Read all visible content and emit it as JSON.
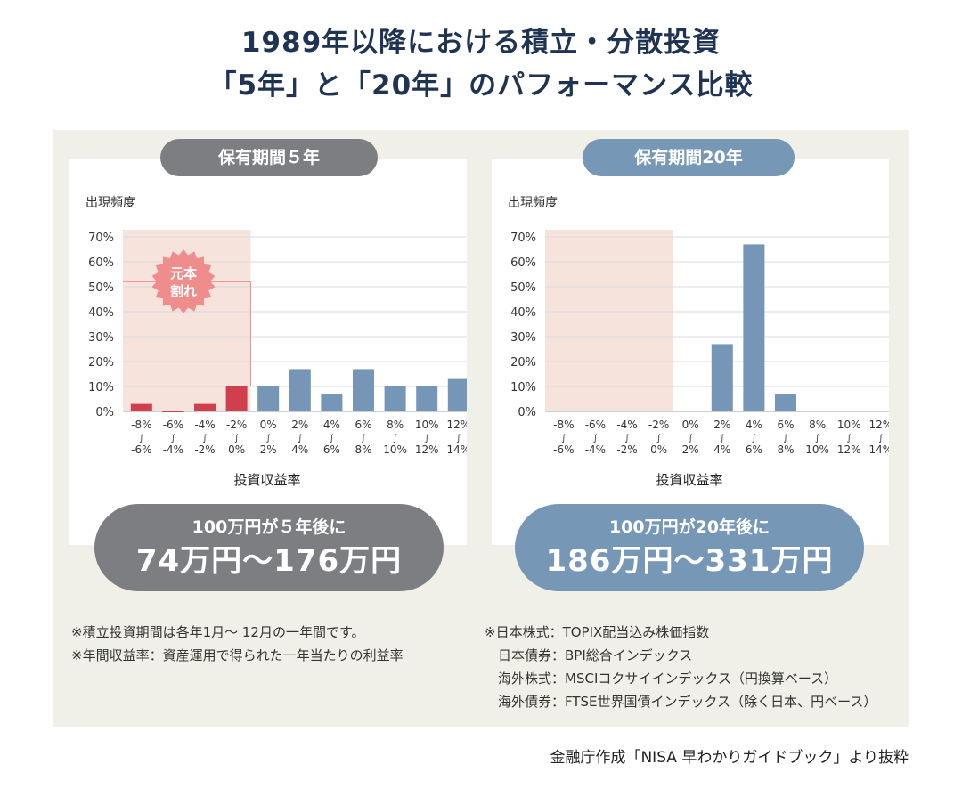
{
  "title_line1": "1989年以降における積立・分散投資",
  "title_line2": "「5年」と「20年」のパフォーマンス比較",
  "colors": {
    "loss_bar": "#cf3f4c",
    "gain_bar": "#7696b8",
    "loss_zone": "#f6e3dc",
    "badge": "#ef8d8d",
    "gray_pill": "#7d7e82",
    "blue_pill": "#7697b6"
  },
  "badge_text": [
    "元本",
    "割れ"
  ],
  "chart_data": [
    {
      "type": "bar",
      "title": "保有期間５年",
      "ylabel": "出現頻度",
      "xlabel": "投資収益率",
      "ylim": [
        0,
        70
      ],
      "yticks": [
        "0%",
        "10%",
        "20%",
        "30%",
        "40%",
        "50%",
        "60%",
        "70%"
      ],
      "categories": [
        [
          "-8%",
          "〜",
          "-6%"
        ],
        [
          "-6%",
          "〜",
          "-4%"
        ],
        [
          "-4%",
          "〜",
          "-2%"
        ],
        [
          "-2%",
          "〜",
          "0%"
        ],
        [
          "0%",
          "〜",
          "2%"
        ],
        [
          "2%",
          "〜",
          "4%"
        ],
        [
          "4%",
          "〜",
          "6%"
        ],
        [
          "6%",
          "〜",
          "8%"
        ],
        [
          "8%",
          "〜",
          "10%"
        ],
        [
          "10%",
          "〜",
          "12%"
        ],
        [
          "12%",
          "〜",
          "14%"
        ]
      ],
      "values": [
        3,
        0,
        3,
        10,
        10,
        17,
        7,
        17,
        10,
        10,
        13
      ],
      "loss_categories": 4,
      "result_line1": "100万円が５年後に",
      "result_line2": "74万円〜176万円"
    },
    {
      "type": "bar",
      "title": "保有期間20年",
      "ylabel": "出現頻度",
      "xlabel": "投資収益率",
      "ylim": [
        0,
        70
      ],
      "yticks": [
        "0%",
        "10%",
        "20%",
        "30%",
        "40%",
        "50%",
        "60%",
        "70%"
      ],
      "categories": [
        [
          "-8%",
          "〜",
          "-6%"
        ],
        [
          "-6%",
          "〜",
          "-4%"
        ],
        [
          "-4%",
          "〜",
          "-2%"
        ],
        [
          "-2%",
          "〜",
          "0%"
        ],
        [
          "0%",
          "〜",
          "2%"
        ],
        [
          "2%",
          "〜",
          "4%"
        ],
        [
          "4%",
          "〜",
          "6%"
        ],
        [
          "6%",
          "〜",
          "8%"
        ],
        [
          "8%",
          "〜",
          "10%"
        ],
        [
          "10%",
          "〜",
          "12%"
        ],
        [
          "12%",
          "〜",
          "14%"
        ]
      ],
      "values": [
        0,
        0,
        0,
        0,
        0,
        27,
        67,
        7,
        0,
        0,
        0
      ],
      "loss_categories": 4,
      "result_line1": "100万円が20年後に",
      "result_line2": "186万円〜331万円"
    }
  ],
  "notes_left": [
    "※積立投資期間は各年1月〜 12月の一年間です。",
    "※年間収益率：資産運用で得られた一年当たりの利益率"
  ],
  "notes_right": [
    "※日本株式：TOPIX配当込み株価指数",
    "　日本債券：BPI総合インデックス",
    "　海外株式：MSCIコクサイインデックス（円換算ベース）",
    "　海外債券：FTSE世界国債インデックス（除く日本、円ベース）"
  ],
  "source": "金融庁作成「NISA 早わかりガイドブック」より抜粋"
}
